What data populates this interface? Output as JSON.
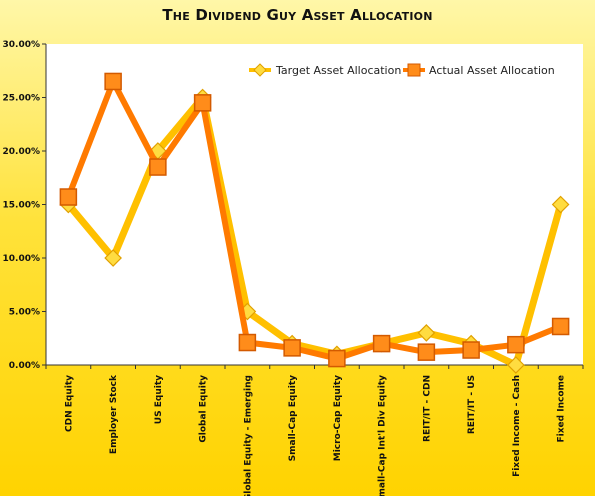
{
  "chart_data": {
    "type": "line",
    "title": "The Dividend Guy Asset Allocation",
    "xlabel": "",
    "ylabel": "",
    "ylim": [
      0,
      0.3
    ],
    "y_ticks": [
      "0.00%",
      "5.00%",
      "10.00%",
      "15.00%",
      "20.00%",
      "25.00%",
      "30.00%"
    ],
    "y_tick_values": [
      0,
      0.05,
      0.1,
      0.15,
      0.2,
      0.25,
      0.3
    ],
    "grid": false,
    "legend_position": "top-right",
    "categories": [
      "CDN Equity",
      "Employer Stock",
      "US Equity",
      "Global Equity",
      "Global Equity - Emerging",
      "Small-Cap Equity",
      "Micro-Cap Equity",
      "Small-Cap Int'l Div Equity",
      "REIT/IT - CDN",
      "REIT/IT - US",
      "Fixed Income - Cash",
      "Fixed Income"
    ],
    "series": [
      {
        "name": "Target Asset Allocation",
        "color": "#ffc000",
        "marker": "diamond",
        "values": [
          0.15,
          0.1,
          0.2,
          0.25,
          0.05,
          0.02,
          0.01,
          0.02,
          0.03,
          0.02,
          0.0,
          0.15
        ]
      },
      {
        "name": "Actual Asset Allocation",
        "color": "#ff7a00",
        "marker": "square",
        "values": [
          0.157,
          0.265,
          0.185,
          0.245,
          0.021,
          0.016,
          0.006,
          0.02,
          0.012,
          0.014,
          0.019,
          0.036
        ]
      }
    ]
  }
}
